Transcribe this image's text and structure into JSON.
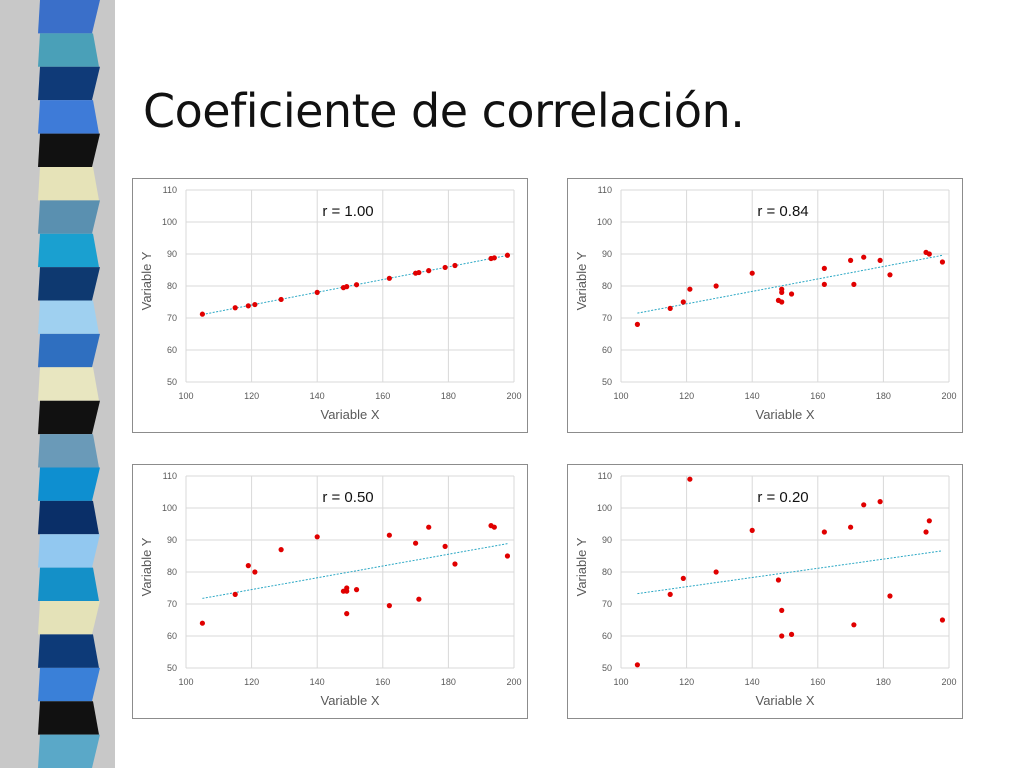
{
  "slide": {
    "title": "Coeficiente de correlación."
  },
  "colors": {
    "point": "#e00000",
    "trendline": "#2aa7c4",
    "grid": "#d9d9d9",
    "strip": [
      "#3a6fc9",
      "#4aa0b8",
      "#0f3a78",
      "#3e7bd8",
      "#111111",
      "#e6e3b8",
      "#5a90b0",
      "#1aa0d0",
      "#0e3970",
      "#9fd0f0",
      "#2f6fc0",
      "#e8e6c0",
      "#111111",
      "#6a9ab8",
      "#0e8fd0",
      "#0a2f68",
      "#92c8f0",
      "#1490c8",
      "#e4e2b8",
      "#0d3a78",
      "#3a80d8",
      "#111111",
      "#5aa8c8"
    ]
  },
  "chart_data": [
    {
      "type": "scatter",
      "annotation": "r = 1.00",
      "xlabel": "Variable X",
      "ylabel": "Variable Y",
      "xlim": [
        100,
        200
      ],
      "ylim": [
        50,
        110
      ],
      "xticks": [
        100,
        120,
        140,
        160,
        180,
        200
      ],
      "yticks": [
        50,
        60,
        70,
        80,
        90,
        100,
        110
      ],
      "grid": "horizontal",
      "trendline": true,
      "x": [
        105,
        115,
        119,
        121,
        129,
        140,
        148,
        149,
        152,
        162,
        170,
        171,
        174,
        179,
        182,
        193,
        194,
        198
      ],
      "y": [
        71.2,
        73.2,
        73.8,
        74.2,
        75.8,
        78.0,
        79.5,
        79.8,
        80.4,
        82.4,
        84.0,
        84.2,
        84.8,
        85.8,
        86.4,
        88.6,
        88.8,
        89.6
      ]
    },
    {
      "type": "scatter",
      "annotation": "r = 0.84",
      "xlabel": "Variable X",
      "ylabel": "Variable Y",
      "xlim": [
        100,
        200
      ],
      "ylim": [
        50,
        110
      ],
      "xticks": [
        100,
        120,
        140,
        160,
        180,
        200
      ],
      "yticks": [
        50,
        60,
        70,
        80,
        90,
        100,
        110
      ],
      "grid": "horizontal",
      "trendline": true,
      "x": [
        105,
        115,
        119,
        121,
        129,
        140,
        148,
        149,
        149,
        149,
        152,
        162,
        162,
        170,
        171,
        174,
        179,
        182,
        193,
        194,
        198
      ],
      "y": [
        68,
        73,
        75,
        79,
        80,
        84,
        75.5,
        79,
        78,
        75,
        77.5,
        85.5,
        80.5,
        88,
        80.5,
        89,
        88,
        83.5,
        90.5,
        90,
        87.5
      ]
    },
    {
      "type": "scatter",
      "annotation": "r = 0.50",
      "xlabel": "Variable X",
      "ylabel": "Variable Y",
      "xlim": [
        100,
        200
      ],
      "ylim": [
        50,
        110
      ],
      "xticks": [
        100,
        120,
        140,
        160,
        180,
        200
      ],
      "yticks": [
        50,
        60,
        70,
        80,
        90,
        100,
        110
      ],
      "grid": "horizontal",
      "trendline": true,
      "x": [
        105,
        115,
        119,
        121,
        129,
        140,
        148,
        149,
        149,
        149,
        152,
        162,
        162,
        170,
        171,
        174,
        179,
        182,
        193,
        194,
        198
      ],
      "y": [
        64,
        73,
        82,
        80,
        87,
        91,
        74,
        74,
        75,
        67,
        74.5,
        91.5,
        69.5,
        89,
        71.5,
        94,
        88,
        82.5,
        94.5,
        94,
        85
      ]
    },
    {
      "type": "scatter",
      "annotation": "r = 0.20",
      "xlabel": "Variable X",
      "ylabel": "Variable Y",
      "xlim": [
        100,
        200
      ],
      "ylim": [
        50,
        110
      ],
      "xticks": [
        100,
        120,
        140,
        160,
        180,
        200
      ],
      "yticks": [
        50,
        60,
        70,
        80,
        90,
        100,
        110
      ],
      "grid": "horizontal",
      "trendline": true,
      "x": [
        105,
        115,
        119,
        121,
        129,
        140,
        148,
        149,
        149,
        152,
        162,
        170,
        171,
        174,
        179,
        182,
        193,
        194,
        198
      ],
      "y": [
        51,
        73,
        78,
        109,
        80,
        93,
        77.5,
        68,
        60,
        60.5,
        92.5,
        94,
        63.5,
        101,
        102,
        72.5,
        92.5,
        96,
        65
      ]
    }
  ]
}
